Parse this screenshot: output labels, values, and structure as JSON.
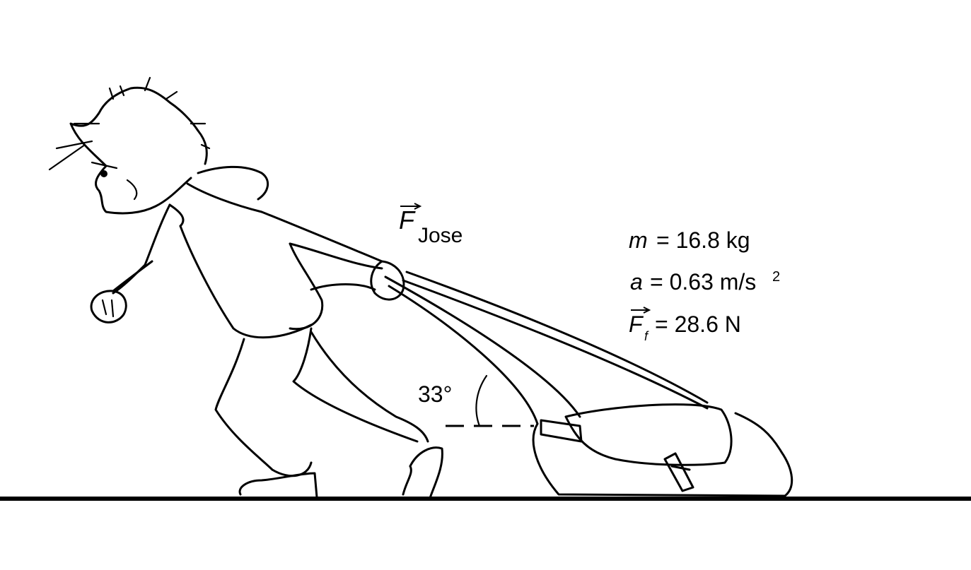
{
  "force_label": {
    "symbol": "F",
    "subscript": "Jose"
  },
  "angle_label": "33°",
  "givens": {
    "mass": {
      "symbol": "m",
      "equals": "= 16.8 kg"
    },
    "acceleration": {
      "symbol": "a",
      "equals": "= 0.63 m/s",
      "exponent": "2"
    },
    "friction": {
      "symbol": "F",
      "subscript": "f",
      "equals": "= 28.6 N"
    }
  }
}
